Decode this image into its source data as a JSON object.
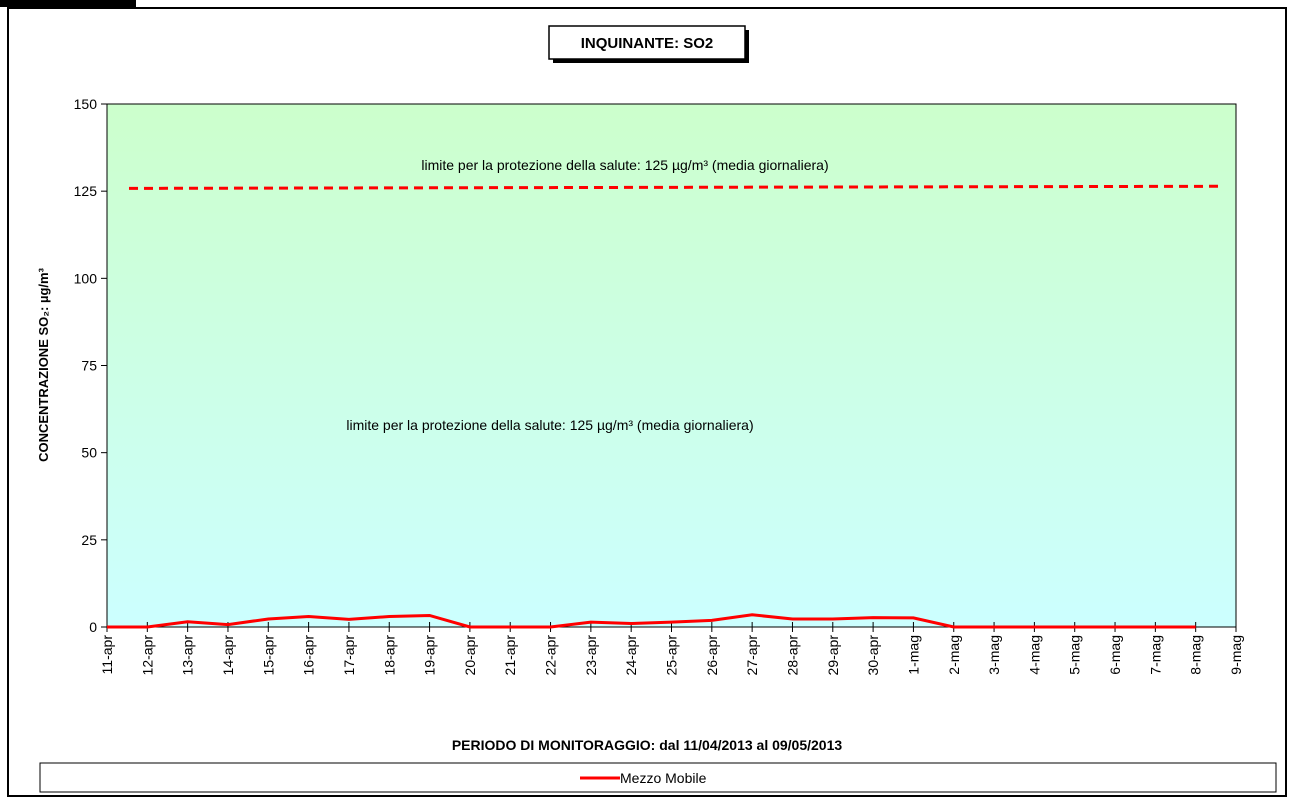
{
  "chart_data": {
    "type": "line",
    "title": "INQUINANTE: SO2",
    "y_label": "CONCENTRAZIONE SO₂:  µg/m³",
    "x_label": "PERIODO DI MONITORAGGIO: dal 11/04/2013 al 09/05/2013",
    "annotations": [
      "limite per la protezione della salute: 125 µg/m³ (media giornaliera)",
      "limite per la protezione della salute: 125 µg/m³ (media giornaliera)"
    ],
    "categories": [
      "11-apr",
      "12-apr",
      "13-apr",
      "14-apr",
      "15-apr",
      "16-apr",
      "17-apr",
      "18-apr",
      "19-apr",
      "20-apr",
      "21-apr",
      "22-apr",
      "23-apr",
      "24-apr",
      "25-apr",
      "26-apr",
      "27-apr",
      "28-apr",
      "29-apr",
      "30-apr",
      "1-mag",
      "2-mag",
      "3-mag",
      "4-mag",
      "5-mag",
      "6-mag",
      "7-mag",
      "8-mag",
      "9-mag"
    ],
    "series": [
      {
        "name": "Mezzo Mobile",
        "color": "#ff0000",
        "values": [
          0,
          0,
          1.5,
          0.7,
          2.3,
          3,
          2.2,
          3,
          3.3,
          0,
          0,
          0,
          1.4,
          1,
          1.4,
          1.9,
          3.5,
          2.3,
          2.3,
          2.7,
          2.6,
          0,
          0,
          0,
          0,
          0,
          0,
          0,
          null
        ]
      }
    ],
    "reference_line": {
      "values": [
        125.8,
        126.4
      ],
      "color": "#ff0000"
    },
    "ylim": [
      0,
      150
    ],
    "yticks": [
      0,
      25,
      50,
      75,
      100,
      125,
      150
    ],
    "legend": "bottom"
  }
}
